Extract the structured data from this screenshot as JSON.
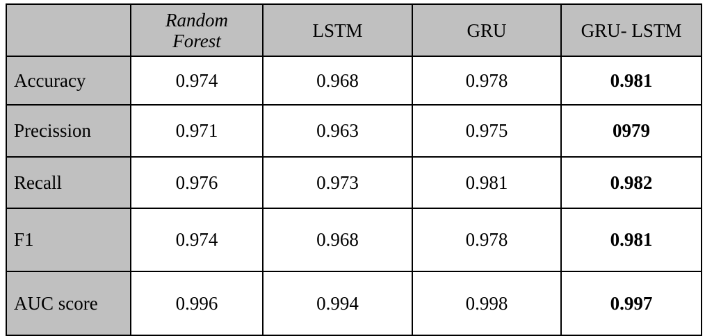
{
  "table": {
    "columns": [
      "",
      "Random Forest",
      "LSTM",
      "GRU",
      "GRU- LSTM"
    ],
    "header_line1": "Random",
    "header_line2": "Forest",
    "shading": "#c0c0c0",
    "rows": [
      {
        "metric": "Accuracy",
        "values": [
          "0.974",
          "0.968",
          "0.978",
          "0.981"
        ]
      },
      {
        "metric": "Precission",
        "values": [
          "0.971",
          "0.963",
          "0.975",
          "0979"
        ]
      },
      {
        "metric": "Recall",
        "values": [
          "0.976",
          "0.973",
          "0.981",
          "0.982"
        ]
      },
      {
        "metric": "F1",
        "values": [
          "0.974",
          "0.968",
          "0.978",
          "0.981"
        ]
      },
      {
        "metric": "AUC score",
        "values": [
          "0.996",
          "0.994",
          "0.998",
          "0.997"
        ]
      }
    ],
    "bold_column": "GRU- LSTM"
  }
}
